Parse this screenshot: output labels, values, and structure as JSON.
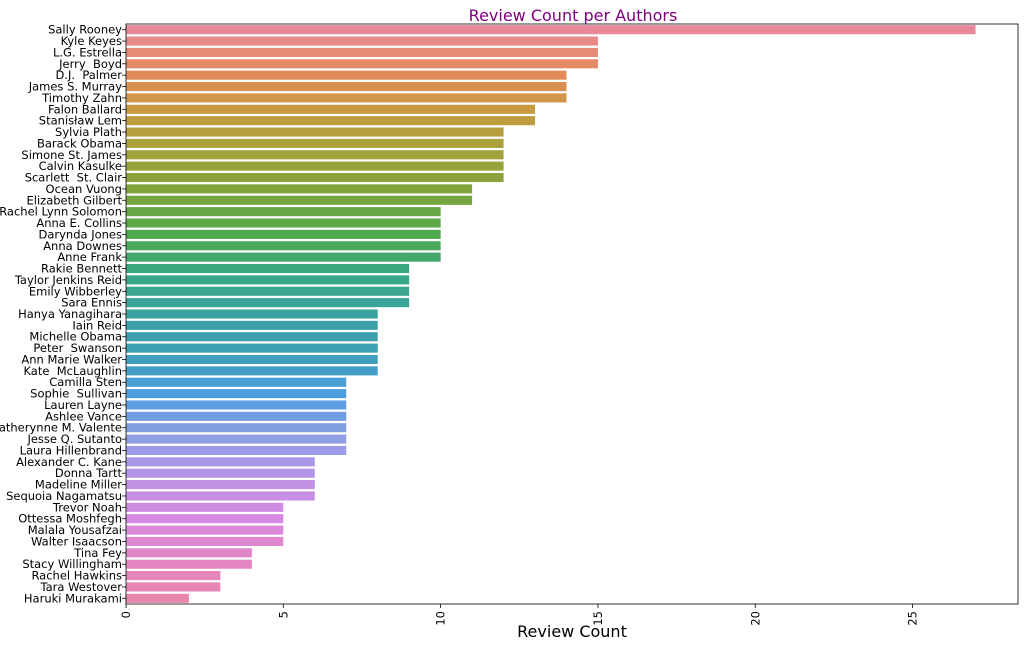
{
  "chart_data": {
    "type": "bar",
    "orientation": "horizontal",
    "title": "Review Count per Authors",
    "title_color": "#800080",
    "xlabel": "Review Count",
    "ylabel": "",
    "xlim": [
      0,
      28.35
    ],
    "xticks": [
      0,
      5,
      10,
      15,
      20,
      25
    ],
    "xtick_labels": [
      "0",
      "5",
      "10",
      "15",
      "20",
      "25"
    ],
    "grid": false,
    "palette": "husl gradient (pink → orange → olive → green → teal → blue → purple → pink)",
    "categories": [
      "Sally Rooney",
      "Kyle Keyes",
      "L.G. Estrella",
      "Jerry  Boyd",
      "D.J.  Palmer",
      "James S. Murray",
      "Timothy Zahn",
      "Falon Ballard",
      "Stanisław Lem",
      "Sylvia Plath",
      "Barack Obama",
      "Simone St. James",
      "Calvin Kasulke",
      "Scarlett  St. Clair",
      "Ocean Vuong",
      "Elizabeth Gilbert",
      "Rachel Lynn Solomon",
      "Anna E. Collins",
      "Darynda Jones",
      "Anna Downes",
      "Anne Frank",
      "Rakie Bennett",
      "Taylor Jenkins Reid",
      "Emily Wibberley",
      "Sara Ennis",
      "Hanya Yanagihara",
      "Iain Reid",
      "Michelle Obama",
      "Peter  Swanson",
      "Ann Marie Walker",
      "Kate  McLaughlin",
      "Camilla Sten",
      "Sophie  Sullivan",
      "Lauren Layne",
      "Ashlee Vance",
      "Catherynne M. Valente",
      "Jesse Q. Sutanto",
      "Laura Hillenbrand",
      "Alexander C. Kane",
      "Donna Tartt",
      "Madeline Miller",
      "Sequoia Nagamatsu",
      "Trevor Noah",
      "Ottessa Moshfegh",
      "Malala Yousafzai",
      "Walter Isaacson",
      "Tina Fey",
      "Stacy Willingham",
      "Rachel Hawkins",
      "Tara Westover",
      "Haruki Murakami"
    ],
    "values": [
      27,
      15,
      15,
      15,
      14,
      14,
      14,
      13,
      13,
      12,
      12,
      12,
      12,
      12,
      11,
      11,
      10,
      10,
      10,
      10,
      10,
      9,
      9,
      9,
      9,
      8,
      8,
      8,
      8,
      8,
      8,
      7,
      7,
      7,
      7,
      7,
      7,
      7,
      6,
      6,
      6,
      6,
      5,
      5,
      5,
      5,
      4,
      4,
      3,
      3,
      2
    ]
  }
}
